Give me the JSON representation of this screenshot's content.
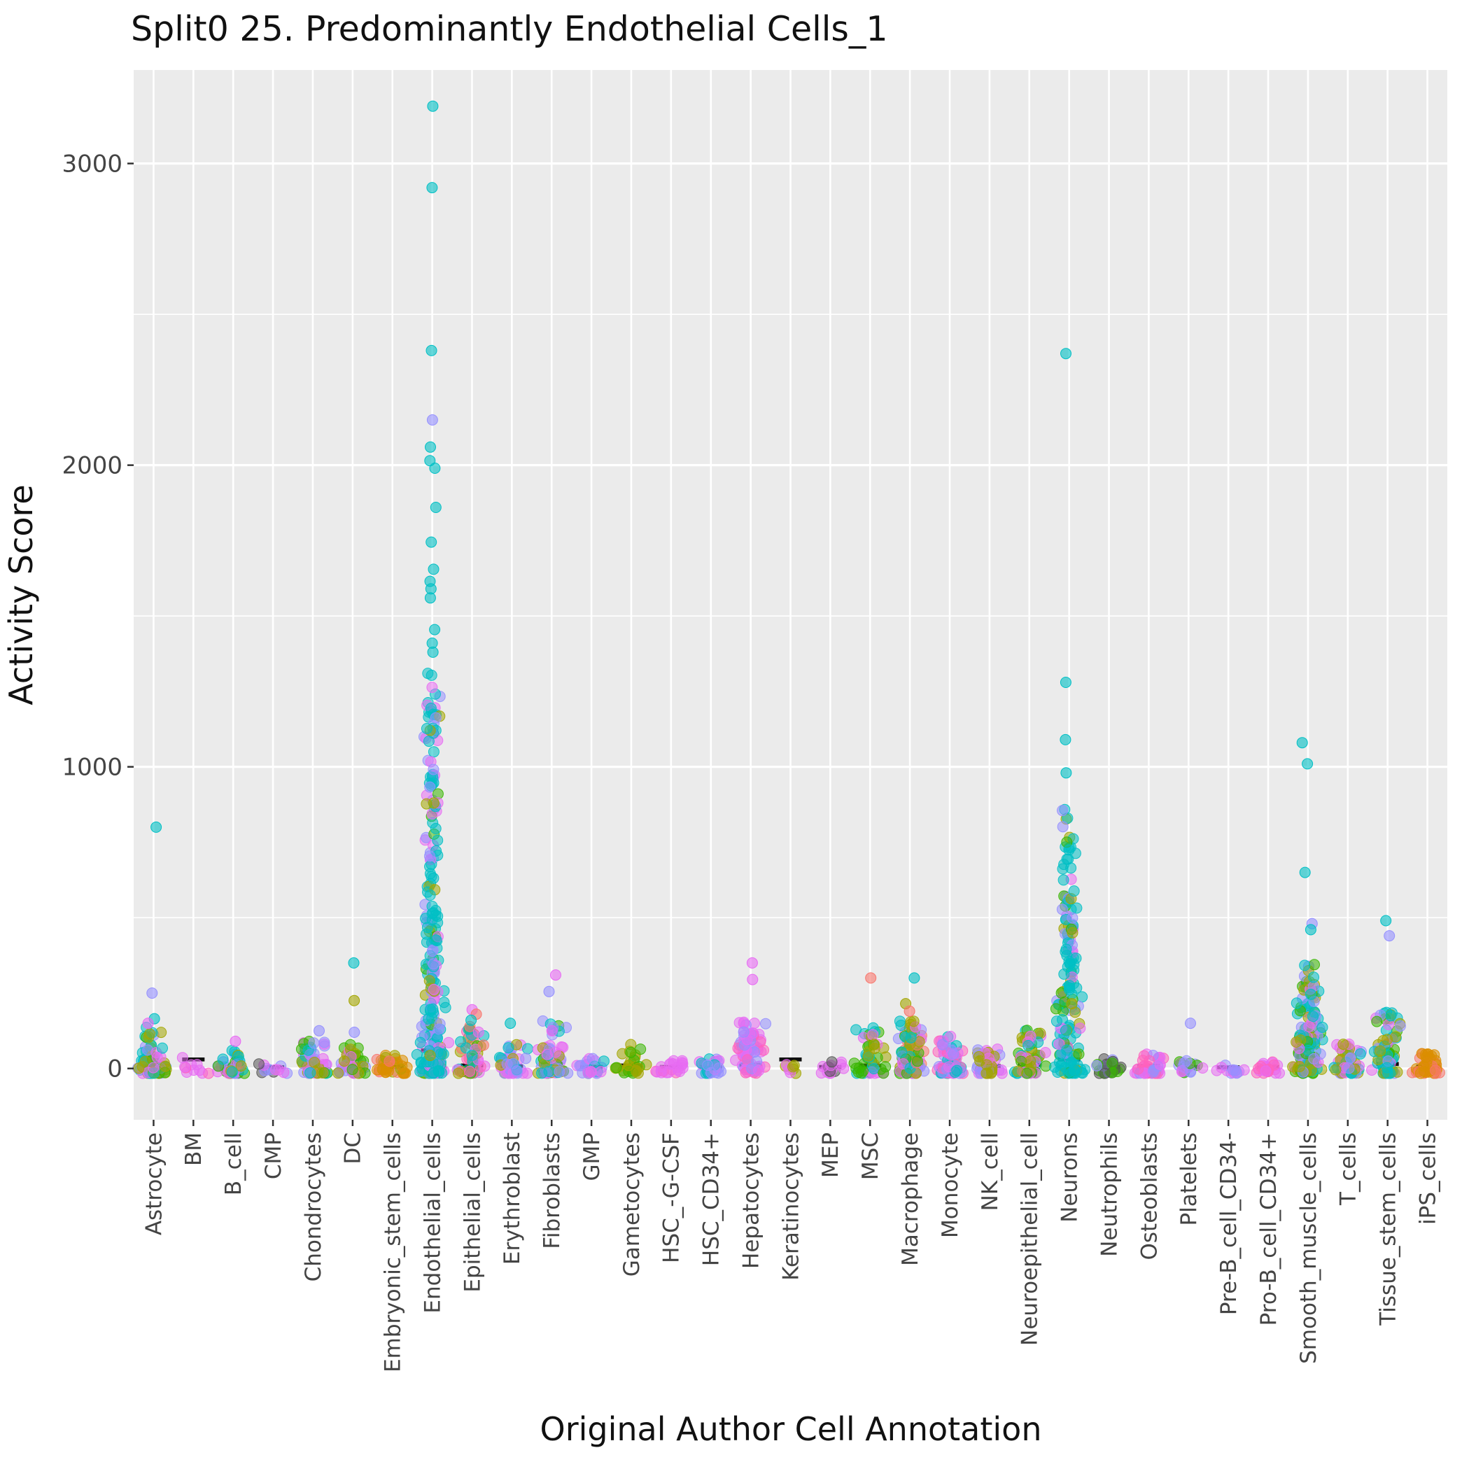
{
  "chart_data": {
    "type": "scatter",
    "subtype": "jitter-strip",
    "title": "Split0 25. Predominantly Endothelial Cells_1",
    "xlabel": "Original Author Cell Annotation",
    "ylabel": "Activity Score",
    "ylim": [
      -170,
      3310
    ],
    "yticks": [
      0,
      1000,
      2000,
      3000
    ],
    "yticks_minor": [
      500,
      1500,
      2500
    ],
    "grid": true,
    "legend": "none",
    "panel_bg": "#EBEBEB",
    "grid_color": "#FFFFFF",
    "tick_label_color": "#444444",
    "title_color": "#111111",
    "median_dash_color": "#101010",
    "palette": {
      "teal": "#00BFC4",
      "magenta": "#E76BF3",
      "purple": "#9590FF",
      "olive": "#A3A500",
      "orange": "#DB8E00",
      "green": "#39B600",
      "pink": "#FF62BC",
      "salmon": "#F8766D",
      "dark": "#555555"
    },
    "categories": [
      {
        "label": "Astrocyte",
        "median": 8,
        "n": 70,
        "max": 140,
        "exp": 2.6,
        "colors": [
          "olive",
          "olive",
          "teal",
          "magenta",
          "green",
          "teal",
          "purple"
        ],
        "outliers": [
          [
            800,
            "teal"
          ],
          [
            250,
            "purple"
          ],
          [
            165,
            "teal"
          ],
          [
            150,
            "magenta"
          ]
        ]
      },
      {
        "label": "BM",
        "median": 30,
        "n": 10,
        "max": 55,
        "exp": 1.5,
        "colors": [
          "magenta",
          "pink",
          "magenta"
        ],
        "outliers": []
      },
      {
        "label": "B_cell",
        "median": 6,
        "n": 48,
        "max": 70,
        "exp": 2.2,
        "colors": [
          "magenta",
          "green",
          "teal",
          "purple",
          "olive"
        ],
        "outliers": [
          [
            90,
            "magenta"
          ]
        ]
      },
      {
        "label": "CMP",
        "median": 4,
        "n": 12,
        "max": 18,
        "exp": 1.5,
        "colors": [
          "purple",
          "magenta",
          "dark"
        ],
        "outliers": []
      },
      {
        "label": "Chondrocytes",
        "median": 8,
        "n": 55,
        "max": 90,
        "exp": 2.2,
        "colors": [
          "magenta",
          "olive",
          "green",
          "purple",
          "teal"
        ],
        "outliers": [
          [
            125,
            "purple"
          ]
        ]
      },
      {
        "label": "DC",
        "median": 8,
        "n": 48,
        "max": 95,
        "exp": 2.2,
        "colors": [
          "purple",
          "magenta",
          "olive",
          "green"
        ],
        "outliers": [
          [
            350,
            "teal"
          ],
          [
            225,
            "olive"
          ],
          [
            120,
            "purple"
          ]
        ]
      },
      {
        "label": "Embryonic_stem_cells",
        "median": 5,
        "n": 35,
        "max": 45,
        "exp": 2.0,
        "colors": [
          "orange",
          "olive",
          "salmon",
          "orange"
        ],
        "outliers": []
      },
      {
        "label": "Endothelial_cells",
        "median": 60,
        "n": 260,
        "max": 1320,
        "exp": 2.0,
        "colors": [
          "teal",
          "teal",
          "teal",
          "teal",
          "teal",
          "purple",
          "teal",
          "magenta",
          "olive",
          "teal",
          "purple",
          "green",
          "magenta"
        ],
        "outliers": [
          [
            1380,
            "teal"
          ],
          [
            1410,
            "teal"
          ],
          [
            1455,
            "teal"
          ],
          [
            1560,
            "teal"
          ],
          [
            1590,
            "teal"
          ],
          [
            1615,
            "teal"
          ],
          [
            1655,
            "teal"
          ],
          [
            1745,
            "teal"
          ],
          [
            1860,
            "teal"
          ],
          [
            1990,
            "teal"
          ],
          [
            2015,
            "teal"
          ],
          [
            2060,
            "teal"
          ],
          [
            2150,
            "purple"
          ],
          [
            2380,
            "teal"
          ],
          [
            2920,
            "teal"
          ],
          [
            3190,
            "teal"
          ],
          [
            880,
            "olive"
          ]
        ]
      },
      {
        "label": "Epithelial_cells",
        "median": 10,
        "n": 55,
        "max": 150,
        "exp": 2.4,
        "colors": [
          "magenta",
          "pink",
          "green",
          "teal",
          "olive",
          "salmon"
        ],
        "outliers": [
          [
            195,
            "magenta"
          ],
          [
            180,
            "salmon"
          ],
          [
            160,
            "teal"
          ]
        ]
      },
      {
        "label": "Erythroblast",
        "median": 8,
        "n": 45,
        "max": 90,
        "exp": 2.4,
        "colors": [
          "magenta",
          "purple",
          "olive",
          "teal"
        ],
        "outliers": [
          [
            150,
            "teal"
          ]
        ]
      },
      {
        "label": "Fibroblasts",
        "median": 15,
        "n": 70,
        "max": 160,
        "exp": 2.2,
        "colors": [
          "purple",
          "magenta",
          "teal",
          "olive",
          "green"
        ],
        "outliers": [
          [
            310,
            "magenta"
          ],
          [
            255,
            "purple"
          ]
        ]
      },
      {
        "label": "GMP",
        "median": 5,
        "n": 22,
        "max": 35,
        "exp": 1.8,
        "colors": [
          "purple",
          "magenta",
          "teal"
        ],
        "outliers": []
      },
      {
        "label": "Gametocytes",
        "median": 10,
        "n": 30,
        "max": 85,
        "exp": 1.8,
        "colors": [
          "olive",
          "olive",
          "olive",
          "green"
        ],
        "outliers": []
      },
      {
        "label": "HSC_-G-CSF",
        "median": 5,
        "n": 22,
        "max": 28,
        "exp": 1.6,
        "colors": [
          "magenta",
          "pink",
          "magenta"
        ],
        "outliers": []
      },
      {
        "label": "HSC_CD34+",
        "median": 5,
        "n": 28,
        "max": 32,
        "exp": 1.6,
        "colors": [
          "purple",
          "magenta",
          "teal"
        ],
        "outliers": []
      },
      {
        "label": "Hepatocytes",
        "median": 12,
        "n": 75,
        "max": 155,
        "exp": 1.3,
        "colors": [
          "magenta",
          "magenta",
          "pink",
          "magenta",
          "purple"
        ],
        "outliers": [
          [
            350,
            "magenta"
          ],
          [
            295,
            "magenta"
          ]
        ]
      },
      {
        "label": "Keratinocytes",
        "median": 30,
        "n": 8,
        "max": 45,
        "exp": 1.5,
        "colors": [
          "olive",
          "magenta"
        ],
        "outliers": []
      },
      {
        "label": "MEP",
        "median": 5,
        "n": 16,
        "max": 22,
        "exp": 1.5,
        "colors": [
          "magenta",
          "dark",
          "magenta"
        ],
        "outliers": []
      },
      {
        "label": "MSC",
        "median": 10,
        "n": 48,
        "max": 135,
        "exp": 2.2,
        "colors": [
          "green",
          "green",
          "olive",
          "teal",
          "magenta"
        ],
        "outliers": [
          [
            300,
            "salmon"
          ]
        ]
      },
      {
        "label": "Macrophage",
        "median": 15,
        "n": 85,
        "max": 160,
        "exp": 2.2,
        "colors": [
          "magenta",
          "olive",
          "green",
          "teal",
          "purple",
          "salmon"
        ],
        "outliers": [
          [
            300,
            "teal"
          ],
          [
            215,
            "olive"
          ],
          [
            190,
            "salmon"
          ]
        ]
      },
      {
        "label": "Monocyte",
        "median": 10,
        "n": 70,
        "max": 110,
        "exp": 2.2,
        "colors": [
          "magenta",
          "purple",
          "teal",
          "pink"
        ],
        "outliers": []
      },
      {
        "label": "NK_cell",
        "median": 8,
        "n": 45,
        "max": 65,
        "exp": 2.0,
        "colors": [
          "magenta",
          "olive",
          "purple"
        ],
        "outliers": []
      },
      {
        "label": "Neuroepithelial_cell",
        "median": 12,
        "n": 60,
        "max": 130,
        "exp": 2.2,
        "colors": [
          "teal",
          "green",
          "olive",
          "magenta"
        ],
        "outliers": []
      },
      {
        "label": "Neurons",
        "median": 30,
        "n": 160,
        "max": 860,
        "exp": 1.8,
        "colors": [
          "teal",
          "teal",
          "teal",
          "teal",
          "purple",
          "magenta",
          "olive",
          "green",
          "teal",
          "teal"
        ],
        "outliers": [
          [
            2370,
            "teal"
          ],
          [
            1280,
            "teal"
          ],
          [
            1090,
            "teal"
          ],
          [
            980,
            "teal"
          ],
          [
            215,
            "olive"
          ]
        ]
      },
      {
        "label": "Neutrophils",
        "median": 5,
        "n": 28,
        "max": 35,
        "exp": 1.8,
        "colors": [
          "green",
          "purple",
          "dark"
        ],
        "outliers": []
      },
      {
        "label": "Osteoblasts",
        "median": 8,
        "n": 40,
        "max": 70,
        "exp": 2.0,
        "colors": [
          "magenta",
          "purple",
          "pink"
        ],
        "outliers": []
      },
      {
        "label": "Platelets",
        "median": 5,
        "n": 22,
        "max": 30,
        "exp": 1.6,
        "colors": [
          "purple",
          "magenta",
          "green"
        ],
        "outliers": [
          [
            150,
            "purple"
          ]
        ]
      },
      {
        "label": "Pre-B_cell_CD34-",
        "median": 4,
        "n": 14,
        "max": 16,
        "exp": 1.4,
        "colors": [
          "purple",
          "magenta"
        ],
        "outliers": []
      },
      {
        "label": "Pro-B_cell_CD34+",
        "median": 5,
        "n": 22,
        "max": 24,
        "exp": 1.5,
        "colors": [
          "magenta",
          "pink"
        ],
        "outliers": []
      },
      {
        "label": "Smooth_muscle_cells",
        "median": 40,
        "n": 140,
        "max": 350,
        "exp": 1.7,
        "colors": [
          "teal",
          "purple",
          "magenta",
          "olive",
          "teal",
          "green"
        ],
        "outliers": [
          [
            1080,
            "teal"
          ],
          [
            1010,
            "teal"
          ],
          [
            650,
            "teal"
          ],
          [
            480,
            "purple"
          ],
          [
            460,
            "teal"
          ]
        ]
      },
      {
        "label": "T_cells",
        "median": 10,
        "n": 55,
        "max": 85,
        "exp": 2.0,
        "colors": [
          "teal",
          "magenta",
          "olive",
          "purple"
        ],
        "outliers": []
      },
      {
        "label": "Tissue_stem_cells",
        "median": 15,
        "n": 70,
        "max": 190,
        "exp": 2.0,
        "colors": [
          "teal",
          "magenta",
          "olive",
          "purple",
          "green",
          "teal"
        ],
        "outliers": [
          [
            490,
            "teal"
          ],
          [
            440,
            "purple"
          ],
          [
            175,
            "teal"
          ]
        ]
      },
      {
        "label": "iPS_cells",
        "median": 6,
        "n": 45,
        "max": 55,
        "exp": 1.8,
        "colors": [
          "orange",
          "orange",
          "salmon"
        ],
        "outliers": []
      }
    ]
  }
}
